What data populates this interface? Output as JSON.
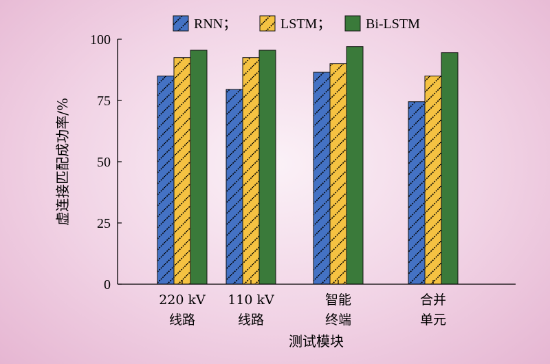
{
  "chart_data": {
    "type": "bar",
    "categories": [
      [
        "220 kV",
        "线路"
      ],
      [
        "110 kV",
        "线路"
      ],
      [
        "智能",
        "终端"
      ],
      [
        "合并",
        "单元"
      ]
    ],
    "series": [
      {
        "name": "RNN；",
        "values": [
          85,
          79.5,
          86.5,
          74.5
        ],
        "color": "#4472c4",
        "pattern": "hatch"
      },
      {
        "name": "LSTM；",
        "values": [
          92.5,
          92.5,
          90,
          85
        ],
        "color": "#f5c242",
        "pattern": "hatch"
      },
      {
        "name": "Bi-LSTM",
        "values": [
          95.5,
          95.5,
          97,
          94.5
        ],
        "color": "#3a7a3a",
        "pattern": "solid"
      }
    ],
    "xlabel": "测试模块",
    "ylabel": "虚连接匹配成功率/%",
    "ylim": [
      0,
      100
    ],
    "yticks": [
      0,
      25,
      50,
      75,
      100
    ],
    "legend_position": "top"
  }
}
